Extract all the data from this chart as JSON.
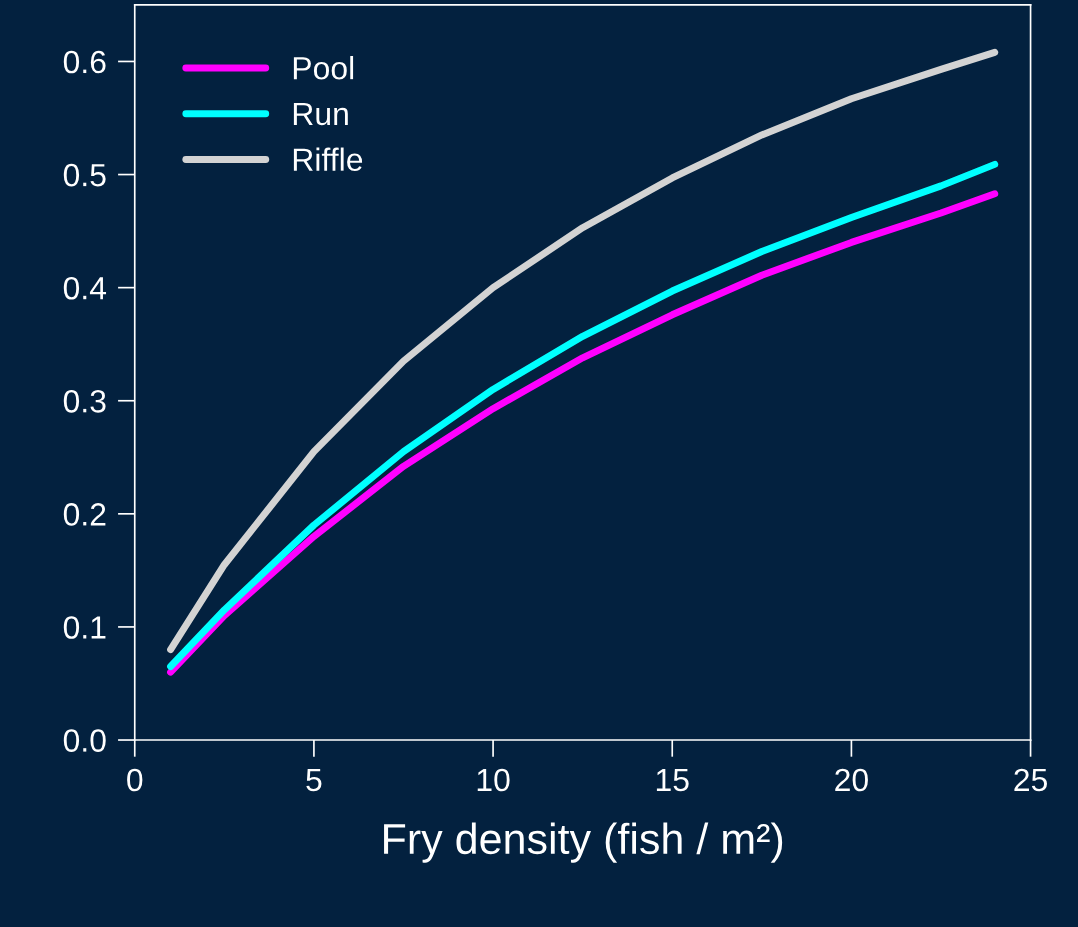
{
  "chart_data": {
    "type": "line",
    "xlabel": "Fry density (fish / m²)",
    "xlim": [
      0,
      25
    ],
    "ylim": [
      0,
      0.65
    ],
    "xticks": [
      0,
      5,
      10,
      15,
      20,
      25
    ],
    "yticks": [
      {
        "value": 0,
        "label": "0.0"
      },
      0.1,
      0.2,
      0.3,
      0.4,
      0.5,
      0.6
    ],
    "grid": false,
    "legend": "top left",
    "marker": "none",
    "line_style": "solid",
    "series": [
      {
        "name": "Pool",
        "color": "#ff00ff",
        "x": [
          1,
          2.5,
          5,
          7.5,
          10,
          12.5,
          15,
          17.5,
          20,
          22.5,
          24
        ],
        "values": [
          0.06,
          0.11,
          0.18,
          0.242,
          0.293,
          0.338,
          0.376,
          0.411,
          0.44,
          0.466,
          0.483
        ]
      },
      {
        "name": "Run",
        "color": "#00ffff",
        "x": [
          1,
          2.5,
          5,
          7.5,
          10,
          12.5,
          15,
          17.5,
          20,
          22.5,
          24
        ],
        "values": [
          0.065,
          0.115,
          0.19,
          0.255,
          0.31,
          0.357,
          0.397,
          0.432,
          0.462,
          0.49,
          0.509
        ]
      },
      {
        "name": "Riffle",
        "color": "#d3d3d3",
        "x": [
          1,
          2.5,
          5,
          7.5,
          10,
          12.5,
          15,
          17.5,
          20,
          22.5,
          24
        ],
        "values": [
          0.08,
          0.155,
          0.255,
          0.335,
          0.4,
          0.453,
          0.497,
          0.535,
          0.567,
          0.593,
          0.608
        ]
      }
    ]
  }
}
